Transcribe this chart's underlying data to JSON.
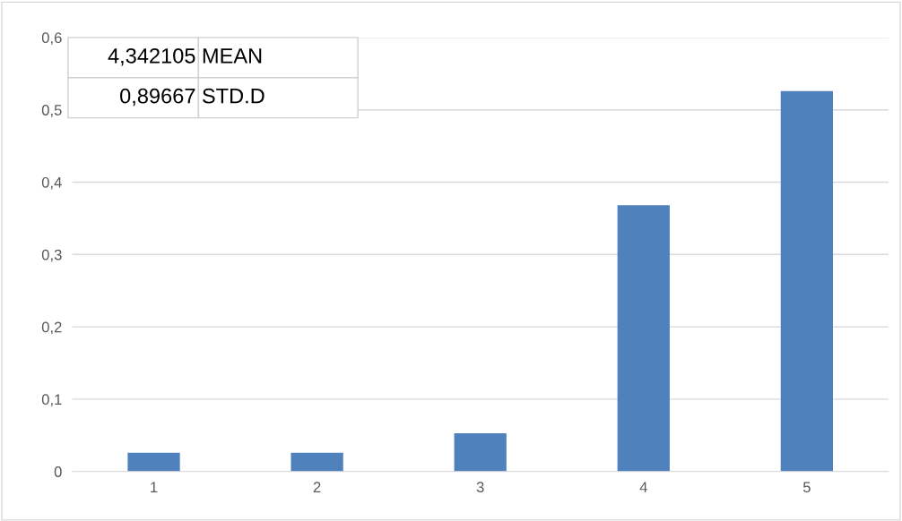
{
  "chart_data": {
    "type": "bar",
    "categories": [
      "1",
      "2",
      "3",
      "4",
      "5"
    ],
    "values": [
      0.026,
      0.026,
      0.053,
      0.368,
      0.526
    ],
    "color": "#4f81bd",
    "ylim": [
      0,
      0.6
    ],
    "yticks": [
      {
        "value": 0,
        "label": "0"
      },
      {
        "value": 0.1,
        "label": "0,1"
      },
      {
        "value": 0.2,
        "label": "0,2"
      },
      {
        "value": 0.3,
        "label": "0,3"
      },
      {
        "value": 0.4,
        "label": "0,4"
      },
      {
        "value": 0.5,
        "label": "0,5"
      },
      {
        "value": 0.6,
        "label": "0,6"
      }
    ],
    "grid": "y",
    "annotations": [
      "4,342105",
      "MEAN",
      "0,89667",
      "STD.D"
    ]
  }
}
